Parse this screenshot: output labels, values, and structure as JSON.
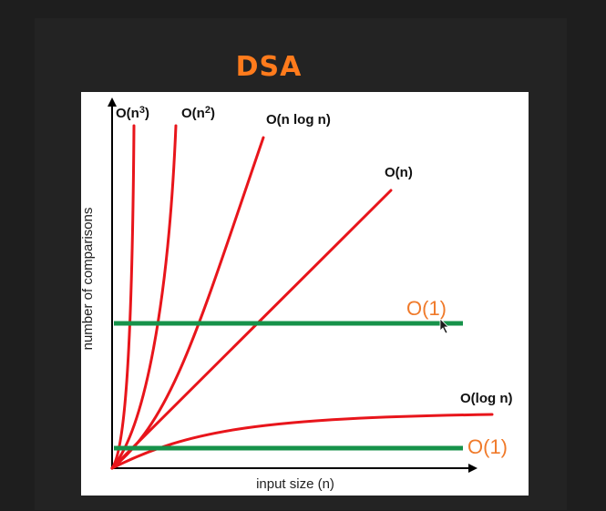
{
  "page": {
    "title": "DSA"
  },
  "chart_data": {
    "type": "line",
    "xlabel": "input size (n)",
    "ylabel": "number of comparisons",
    "grid": false,
    "ticks": false,
    "colors": {
      "growth_curves": "#e8151b",
      "constant_lines": "#16924a",
      "title": "#ff7b1c",
      "orange_labels": "#f07a2a"
    },
    "series": [
      {
        "name": "O(n3)",
        "label_base": "O(n",
        "label_sup": "3",
        "label_tail": ")",
        "kind": "cubic",
        "color": "#e8151b",
        "label_color": "black"
      },
      {
        "name": "O(n2)",
        "label_base": "O(n",
        "label_sup": "2",
        "label_tail": ")",
        "kind": "quadratic",
        "color": "#e8151b",
        "label_color": "black"
      },
      {
        "name": "O(n log n)",
        "label_base": "O(n log n)",
        "label_sup": "",
        "label_tail": "",
        "kind": "nlogn",
        "color": "#e8151b",
        "label_color": "black"
      },
      {
        "name": "O(n)",
        "label_base": "O(n)",
        "label_sup": "",
        "label_tail": "",
        "kind": "linear",
        "color": "#e8151b",
        "label_color": "black"
      },
      {
        "name": "O(1)",
        "label_base": "O(1)",
        "label_sup": "",
        "label_tail": "",
        "kind": "constant-high",
        "color": "#16924a",
        "label_color": "orange"
      },
      {
        "name": "O(log n)",
        "label_base": "O(log n)",
        "label_sup": "",
        "label_tail": "",
        "kind": "log",
        "color": "#e8151b",
        "label_color": "black"
      },
      {
        "name": "O(1)",
        "label_base": "O(1)",
        "label_sup": "",
        "label_tail": "",
        "kind": "constant-low",
        "color": "#16924a",
        "label_color": "orange"
      }
    ]
  }
}
